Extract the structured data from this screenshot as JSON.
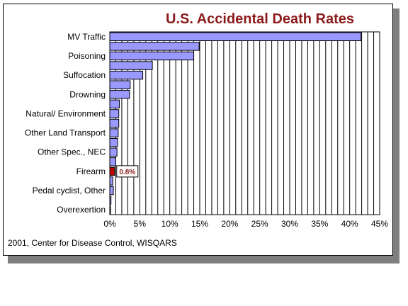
{
  "chart_data": {
    "type": "bar",
    "orientation": "horizontal",
    "title": "U.S. Accidental Death Rates",
    "categories": [
      "MV Traffic",
      "",
      "Poisoning",
      "",
      "Suffocation",
      "",
      "Drowning",
      "",
      "Natural/ Environment",
      "",
      "Other Land Transport",
      "",
      "Other Spec., NEC",
      "",
      "Firearm",
      "",
      "Pedal cyclist, Other",
      "",
      "Overexertion"
    ],
    "values": [
      41.9,
      14.9,
      14.0,
      7.1,
      5.5,
      3.4,
      3.3,
      1.6,
      1.5,
      1.5,
      1.4,
      1.3,
      1.2,
      1.0,
      0.8,
      0.5,
      0.6,
      0.2,
      0.1
    ],
    "highlight": {
      "category": "Firearm",
      "value": 0.8,
      "label": "0.8%",
      "color": "#c00000"
    },
    "bar_color": "#9999ff",
    "xlim": [
      0,
      45
    ],
    "xticks": [
      "0%",
      "5%",
      "10%",
      "15%",
      "20%",
      "25%",
      "30%",
      "35%",
      "40%",
      "45%"
    ],
    "grid": "vertical",
    "xlabel": "",
    "ylabel": ""
  },
  "source": "2001, Center for Disease Control, WISQARS"
}
